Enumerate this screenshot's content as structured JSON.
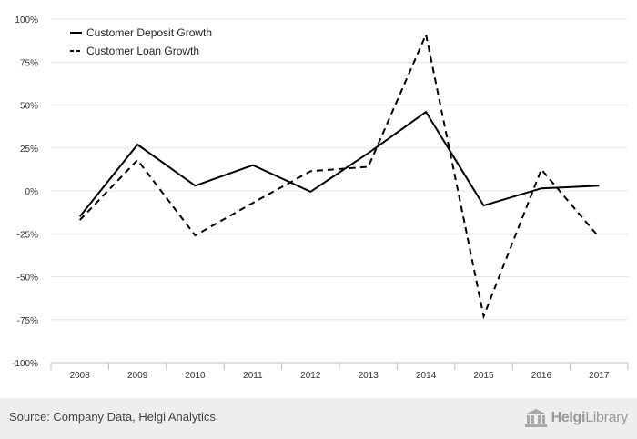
{
  "chart_data": {
    "type": "line",
    "title": "",
    "xlabel": "",
    "ylabel": "",
    "categories": [
      "2008",
      "2009",
      "2010",
      "2011",
      "2012",
      "2013",
      "2014",
      "2015",
      "2016",
      "2017"
    ],
    "ylim": [
      -100,
      100
    ],
    "yticks": [
      100,
      75,
      50,
      25,
      0,
      -25,
      -50,
      -75,
      -100
    ],
    "ytick_labels": [
      "100%",
      "75%",
      "50%",
      "25%",
      "0%",
      "-25%",
      "-50%",
      "-75%",
      "-100%"
    ],
    "grid": true,
    "legend_position": "top-left",
    "series": [
      {
        "name": "Customer Deposit Growth",
        "style": "solid",
        "color": "#000000",
        "values": [
          -15,
          27,
          3,
          15,
          -0.5,
          22,
          46,
          -8.5,
          1.5,
          3
        ]
      },
      {
        "name": "Customer Loan Growth",
        "style": "dashed",
        "color": "#000000",
        "values": [
          -17,
          18,
          -26,
          -7,
          11.5,
          14,
          91,
          -73,
          12.5,
          -27
        ]
      }
    ]
  },
  "footer": {
    "source": "Source: Company Data, Helgi Analytics",
    "brand_bold": "Helgi",
    "brand_regular": "Library"
  },
  "colors": {
    "grid": "#e6e6e6",
    "axis": "#c0c0c0",
    "footer_bg": "#eeeeee",
    "brand": "#9a9a9a"
  },
  "icons": {
    "brand_logo": "library-building-icon"
  }
}
